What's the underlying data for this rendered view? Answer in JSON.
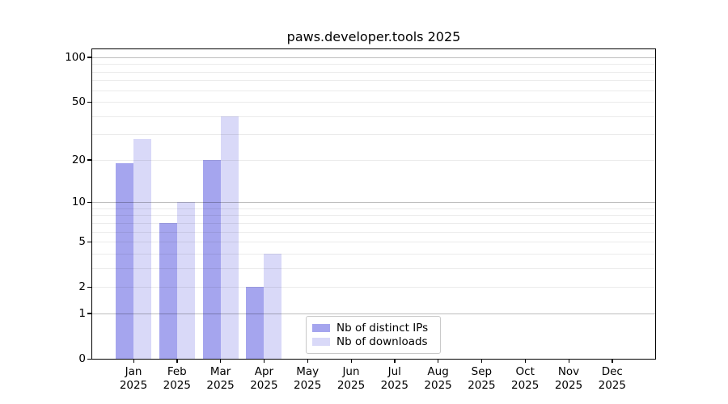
{
  "chart_data": {
    "type": "bar",
    "title": "paws.developer.tools 2025",
    "x_tick_labels": [
      "Jan\n2025",
      "Feb\n2025",
      "Mar\n2025",
      "Apr\n2025",
      "May\n2025",
      "Jun\n2025",
      "Jul\n2025",
      "Aug\n2025",
      "Sep\n2025",
      "Oct\n2025",
      "Nov\n2025",
      "Dec\n2025"
    ],
    "series": [
      {
        "name": "Nb of distinct IPs",
        "color": "#a5a5ee",
        "values": [
          19,
          7,
          20,
          2,
          0,
          0,
          0,
          0,
          0,
          0,
          0,
          0
        ]
      },
      {
        "name": "Nb of downloads",
        "color": "#d9d9f8",
        "values": [
          28,
          10,
          40,
          4,
          0,
          0,
          0,
          0,
          0,
          0,
          0,
          0
        ]
      }
    ],
    "yscale": "log1p",
    "ylim": [
      0,
      113
    ],
    "yticks": [
      0,
      1,
      2,
      5,
      10,
      20,
      50,
      100
    ],
    "ytick_labels": [
      "0",
      "1",
      "2",
      "5",
      "10",
      "20",
      "50",
      "100"
    ],
    "grid": {
      "on": true,
      "major": [
        1,
        10,
        100
      ],
      "minor": [
        2,
        3,
        4,
        5,
        6,
        7,
        8,
        9,
        20,
        30,
        40,
        50,
        60,
        70,
        80,
        90
      ]
    },
    "legend": {
      "position": "lower center inside",
      "entries": [
        "Nb of distinct IPs",
        "Nb of downloads"
      ]
    },
    "xlabel": "",
    "ylabel": ""
  }
}
